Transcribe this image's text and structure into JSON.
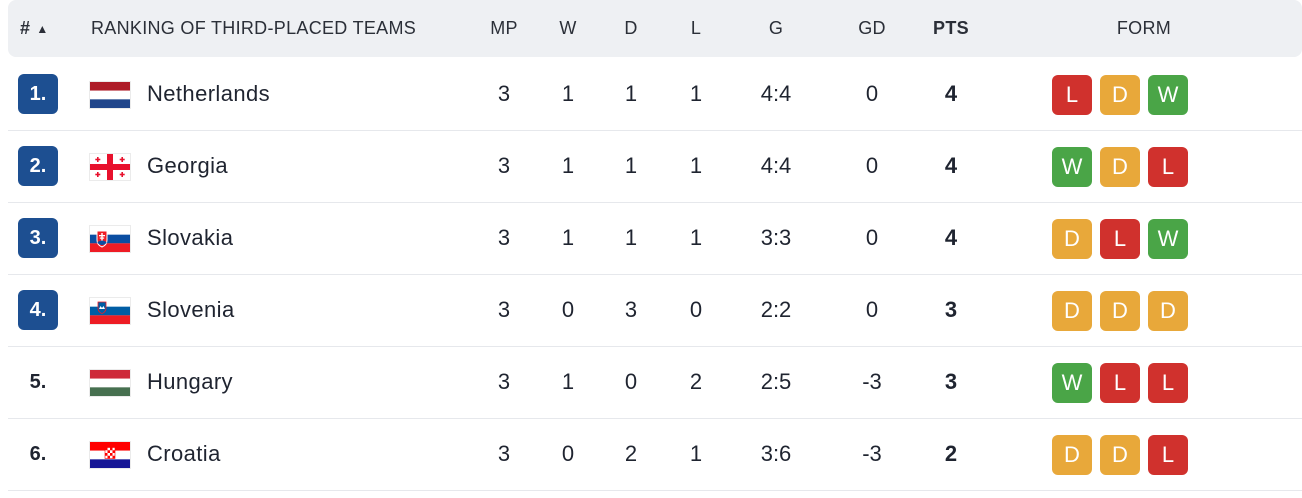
{
  "header": {
    "rank": "#",
    "title": "RANKING OF THIRD-PLACED TEAMS",
    "mp": "MP",
    "w": "W",
    "d": "D",
    "l": "L",
    "g": "G",
    "gd": "GD",
    "pts": "PTS",
    "form": "FORM",
    "sort_icon": "▲"
  },
  "colors": {
    "qualified_badge": "#1d4f91",
    "win": "#4aa547",
    "draw": "#e8a83a",
    "loss": "#d0312d",
    "header_bg": "#eef0f3"
  },
  "rows": [
    {
      "rank": "1.",
      "qualified": true,
      "flag": "netherlands-flag-icon",
      "team": "Netherlands",
      "mp": "3",
      "w": "1",
      "d": "1",
      "l": "1",
      "g": "4:4",
      "gd": "0",
      "pts": "4",
      "form": [
        "L",
        "D",
        "W"
      ]
    },
    {
      "rank": "2.",
      "qualified": true,
      "flag": "georgia-flag-icon",
      "team": "Georgia",
      "mp": "3",
      "w": "1",
      "d": "1",
      "l": "1",
      "g": "4:4",
      "gd": "0",
      "pts": "4",
      "form": [
        "W",
        "D",
        "L"
      ]
    },
    {
      "rank": "3.",
      "qualified": true,
      "flag": "slovakia-flag-icon",
      "team": "Slovakia",
      "mp": "3",
      "w": "1",
      "d": "1",
      "l": "1",
      "g": "3:3",
      "gd": "0",
      "pts": "4",
      "form": [
        "D",
        "L",
        "W"
      ]
    },
    {
      "rank": "4.",
      "qualified": true,
      "flag": "slovenia-flag-icon",
      "team": "Slovenia",
      "mp": "3",
      "w": "0",
      "d": "3",
      "l": "0",
      "g": "2:2",
      "gd": "0",
      "pts": "3",
      "form": [
        "D",
        "D",
        "D"
      ]
    },
    {
      "rank": "5.",
      "qualified": false,
      "flag": "hungary-flag-icon",
      "team": "Hungary",
      "mp": "3",
      "w": "1",
      "d": "0",
      "l": "2",
      "g": "2:5",
      "gd": "-3",
      "pts": "3",
      "form": [
        "W",
        "L",
        "L"
      ]
    },
    {
      "rank": "6.",
      "qualified": false,
      "flag": "croatia-flag-icon",
      "team": "Croatia",
      "mp": "3",
      "w": "0",
      "d": "2",
      "l": "1",
      "g": "3:6",
      "gd": "-3",
      "pts": "2",
      "form": [
        "D",
        "D",
        "L"
      ]
    }
  ]
}
